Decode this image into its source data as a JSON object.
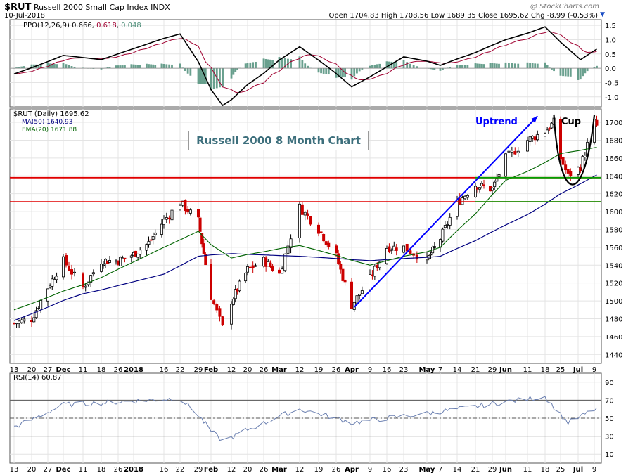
{
  "header": {
    "symbol": "$RUT",
    "name": "Russell 2000 Small Cap Index",
    "exchange": "INDX",
    "date": "10-Jul-2018",
    "ohlc": "Open 1704.83  High 1708.56  Low 1689.35  Close 1695.62  Chg -8.99 (-0.53%)",
    "change_arrow": "▼",
    "watermark": "@ StockCharts.com"
  },
  "ppo_panel": {
    "label": "PPO(12,26,9)",
    "ppo_value": "0.666",
    "signal_value": "0.618",
    "hist_value": "0.048",
    "yticks": [
      "1.5",
      "1.0",
      "0.5",
      "0.0",
      "-0.5",
      "-1.0"
    ]
  },
  "price_panel": {
    "label": "$RUT (Daily) 1695.62",
    "ma_label": "MA(50) 1640.93",
    "ema_label": "EMA(20) 1671.88",
    "yticks": [
      "1700",
      "1680",
      "1660",
      "1640",
      "1620",
      "1600",
      "1580",
      "1560",
      "1540",
      "1520",
      "1500",
      "1480",
      "1460",
      "1440"
    ]
  },
  "rsi_panel": {
    "label": "RSI(14) 60.87",
    "yticks": [
      "90",
      "70",
      "50",
      "30",
      "10"
    ]
  },
  "xaxis": {
    "ticks": [
      "13",
      "20",
      "27",
      "Dec",
      "11",
      "18",
      "26",
      "2018",
      "16",
      "22",
      "29",
      "Feb",
      "12",
      "20",
      "26",
      "Mar",
      "12",
      "19",
      "26",
      "Apr",
      "9",
      "16",
      "23",
      "May",
      "7",
      "14",
      "21",
      "29",
      "Jun",
      "11",
      "18",
      "25",
      "Jul",
      "9"
    ]
  },
  "annotations": {
    "title_box": "Russell 2000 8 Month Chart",
    "uptrend": "Uptrend",
    "cup": "Cup"
  },
  "colors": {
    "up_candle": "#000000",
    "down_candle": "#cc0000",
    "ma50": "#000080",
    "ema20": "#006400",
    "ppo_line": "#000000",
    "signal_line": "#a00030",
    "histogram": "#4f8f7a",
    "horizontal_red": "#e00000",
    "horizontal_green": "#00a000",
    "trend_arrow": "#0000ff"
  },
  "chart_data": {
    "type": "candlestick",
    "title": "Russell 2000 8 Month Chart",
    "price_ylim": [
      1430,
      1715
    ],
    "ppo_ylim": [
      -1.35,
      1.7
    ],
    "rsi_ylim": [
      0,
      100
    ],
    "horizontal_levels": [
      {
        "value": 1638,
        "color": "red",
        "span": "full"
      },
      {
        "value": 1611,
        "color": "red",
        "span": "full"
      },
      {
        "value": 1638,
        "color": "green",
        "span": "May 21 - Jul 10"
      },
      {
        "value": 1611,
        "color": "green",
        "span": "May 21 - Jul 10"
      }
    ],
    "trend_arrow": {
      "from": {
        "date": "Apr 3",
        "value": 1493
      },
      "to": {
        "date": "Jun 15",
        "value": 1707
      }
    },
    "price_anchors": [
      {
        "date": "Nov 13",
        "value": 1475
      },
      {
        "date": "Nov 20",
        "value": 1480
      },
      {
        "date": "Nov 27",
        "value": 1515
      },
      {
        "date": "Dec 4",
        "value": 1545
      },
      {
        "date": "Dec 11",
        "value": 1515
      },
      {
        "date": "Dec 18",
        "value": 1545
      },
      {
        "date": "Dec 26",
        "value": 1545
      },
      {
        "date": "Jan 2",
        "value": 1552
      },
      {
        "date": "Jan 9",
        "value": 1565
      },
      {
        "date": "Jan 16",
        "value": 1590
      },
      {
        "date": "Jan 22",
        "value": 1610
      },
      {
        "date": "Jan 29",
        "value": 1590
      },
      {
        "date": "Feb 5",
        "value": 1505
      },
      {
        "date": "Feb 9",
        "value": 1470
      },
      {
        "date": "Feb 12",
        "value": 1500
      },
      {
        "date": "Feb 20",
        "value": 1535
      },
      {
        "date": "Feb 26",
        "value": 1545
      },
      {
        "date": "Mar 5",
        "value": 1530
      },
      {
        "date": "Mar 12",
        "value": 1605
      },
      {
        "date": "Mar 19",
        "value": 1580
      },
      {
        "date": "Mar 26",
        "value": 1550
      },
      {
        "date": "Apr 2",
        "value": 1495
      },
      {
        "date": "Apr 9",
        "value": 1525
      },
      {
        "date": "Apr 16",
        "value": 1560
      },
      {
        "date": "Apr 23",
        "value": 1560
      },
      {
        "date": "Apr 30",
        "value": 1545
      },
      {
        "date": "May 7",
        "value": 1570
      },
      {
        "date": "May 14",
        "value": 1610
      },
      {
        "date": "May 21",
        "value": 1630
      },
      {
        "date": "May 29",
        "value": 1625
      },
      {
        "date": "Jun 4",
        "value": 1660
      },
      {
        "date": "Jun 11",
        "value": 1680
      },
      {
        "date": "Jun 18",
        "value": 1690
      },
      {
        "date": "Jun 22",
        "value": 1700
      },
      {
        "date": "Jun 25",
        "value": 1660
      },
      {
        "date": "Jun 28",
        "value": 1640
      },
      {
        "date": "Jul 3",
        "value": 1650
      },
      {
        "date": "Jul 9",
        "value": 1700
      },
      {
        "date": "Jul 10",
        "value": 1696
      }
    ],
    "ma50_anchors": [
      {
        "date": "Nov 13",
        "value": 1478
      },
      {
        "date": "Dec 11",
        "value": 1508
      },
      {
        "date": "Jan 16",
        "value": 1530
      },
      {
        "date": "Jan 29",
        "value": 1550
      },
      {
        "date": "Feb 12",
        "value": 1553
      },
      {
        "date": "Mar 12",
        "value": 1550
      },
      {
        "date": "Apr 9",
        "value": 1545
      },
      {
        "date": "May 7",
        "value": 1550
      },
      {
        "date": "Jun 4",
        "value": 1585
      },
      {
        "date": "Jun 25",
        "value": 1620
      },
      {
        "date": "Jul 10",
        "value": 1641
      }
    ],
    "ema20_anchors": [
      {
        "date": "Nov 13",
        "value": 1490
      },
      {
        "date": "Dec 11",
        "value": 1518
      },
      {
        "date": "Jan 16",
        "value": 1560
      },
      {
        "date": "Jan 29",
        "value": 1578
      },
      {
        "date": "Feb 12",
        "value": 1548
      },
      {
        "date": "Mar 12",
        "value": 1562
      },
      {
        "date": "Apr 9",
        "value": 1540
      },
      {
        "date": "May 7",
        "value": 1560
      },
      {
        "date": "Jun 4",
        "value": 1635
      },
      {
        "date": "Jun 25",
        "value": 1665
      },
      {
        "date": "Jul 10",
        "value": 1672
      }
    ],
    "ppo_anchors": [
      {
        "date": "Nov 13",
        "value": -0.2
      },
      {
        "date": "Dec 4",
        "value": 0.45
      },
      {
        "date": "Dec 18",
        "value": 0.3
      },
      {
        "date": "Jan 22",
        "value": 1.2
      },
      {
        "date": "Feb 9",
        "value": -1.3
      },
      {
        "date": "Mar 12",
        "value": 0.75
      },
      {
        "date": "Apr 2",
        "value": -0.65
      },
      {
        "date": "Apr 23",
        "value": 0.4
      },
      {
        "date": "May 7",
        "value": 0.1
      },
      {
        "date": "Jun 18",
        "value": 1.45
      },
      {
        "date": "Jul 3",
        "value": 0.3
      },
      {
        "date": "Jul 10",
        "value": 0.67
      }
    ],
    "rsi_anchors": [
      {
        "date": "Nov 13",
        "value": 40
      },
      {
        "date": "Dec 4",
        "value": 65
      },
      {
        "date": "Jan 22",
        "value": 72
      },
      {
        "date": "Feb 9",
        "value": 25
      },
      {
        "date": "Mar 12",
        "value": 60
      },
      {
        "date": "Apr 2",
        "value": 45
      },
      {
        "date": "May 14",
        "value": 60
      },
      {
        "date": "Jun 18",
        "value": 74
      },
      {
        "date": "Jun 28",
        "value": 45
      },
      {
        "date": "Jul 10",
        "value": 61
      }
    ]
  }
}
